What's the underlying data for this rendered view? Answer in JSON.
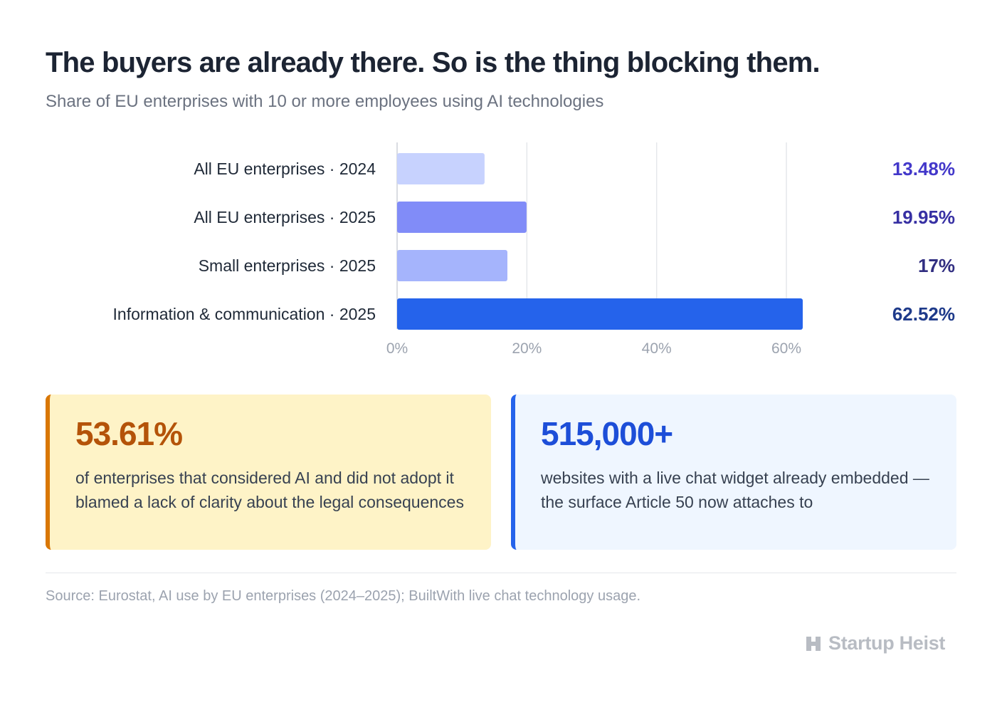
{
  "header": {
    "title": "The buyers are already there. So is the thing blocking them.",
    "subtitle": "Share of EU enterprises with 10 or more employees using AI technologies"
  },
  "chart_data": {
    "type": "bar",
    "orientation": "horizontal",
    "categories": [
      "All EU enterprises · 2024",
      "All EU enterprises · 2025",
      "Small enterprises · 2025",
      "Information & communication · 2025"
    ],
    "values": [
      13.48,
      19.95,
      17,
      62.52
    ],
    "value_labels": [
      "13.48%",
      "19.95%",
      "17%",
      "62.52%"
    ],
    "bar_colors": [
      "#c7d2fe",
      "#818cf8",
      "#a5b4fc",
      "#2563eb"
    ],
    "value_label_colors": [
      "#4338ca",
      "#3730a3",
      "#312e81",
      "#1e3a8a"
    ],
    "xlim": [
      0,
      62.52
    ],
    "xticks": [
      0,
      20,
      40,
      60
    ],
    "xtick_labels": [
      "0%",
      "20%",
      "40%",
      "60%"
    ],
    "grid": true,
    "title": "",
    "xlabel": "",
    "ylabel": ""
  },
  "cards": [
    {
      "stat": "53.61%",
      "text": "of enterprises that considered AI and did not adopt it blamed a lack of clarity about the legal consequences"
    },
    {
      "stat": "515,000+",
      "text": "websites with a live chat widget already embedded — the surface Article 50 now attaches to"
    }
  ],
  "footer": {
    "source": "Source: Eurostat, AI use by EU enterprises (2024–2025); BuiltWith live chat technology usage.",
    "brand": "Startup Heist",
    "brand_icon": "startup-heist-logo-icon"
  }
}
